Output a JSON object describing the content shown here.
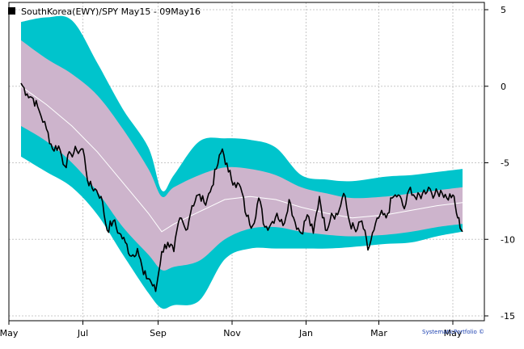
{
  "chart_data": {
    "type": "line",
    "legend": {
      "label": "SouthKorea(EWY)/SPY May15 - 09May16",
      "placement": "top-left"
    },
    "credit": "SystematicPortfolio ©",
    "x_axis": {
      "ticks": [
        "May",
        "Jul",
        "Sep",
        "Nov",
        "Jan",
        "Mar",
        "May"
      ],
      "range": [
        "2015-05-01",
        "2016-05-09"
      ]
    },
    "y_axis": {
      "side": "right",
      "ticks": [
        5,
        0,
        -5,
        -10,
        -15
      ],
      "range": [
        -15,
        5
      ]
    },
    "grid": true,
    "colors": {
      "outer_band": "#00c4cc",
      "inner_band": "#cdb4cc",
      "mean": "#ffffff",
      "price": "#000000"
    },
    "band_x": [
      "2015-05-11",
      "2015-06-01",
      "2015-06-22",
      "2015-07-13",
      "2015-08-03",
      "2015-08-24",
      "2015-09-04",
      "2015-09-14",
      "2015-10-05",
      "2015-10-26",
      "2015-11-16",
      "2015-12-07",
      "2015-12-28",
      "2016-01-18",
      "2016-02-08",
      "2016-03-07",
      "2016-03-28",
      "2016-04-18",
      "2016-05-09"
    ],
    "mean": [
      0,
      -1.2,
      -2.6,
      -4.3,
      -6.3,
      -8.3,
      -9.5,
      -9.0,
      -8.2,
      -7.4,
      -7.2,
      -7.4,
      -7.9,
      -8.3,
      -8.6,
      -8.4,
      -8.1,
      -7.8,
      -7.6
    ],
    "inner_upper": [
      3.0,
      1.8,
      0.8,
      -0.6,
      -2.8,
      -5.4,
      -7.2,
      -6.6,
      -5.8,
      -5.3,
      -5.4,
      -5.8,
      -6.6,
      -7.0,
      -7.3,
      -7.2,
      -7.0,
      -6.8,
      -6.6
    ],
    "inner_lower": [
      -2.6,
      -3.6,
      -5.0,
      -6.9,
      -9.2,
      -11.0,
      -12.0,
      -11.8,
      -11.4,
      -10.0,
      -9.3,
      -9.2,
      -9.5,
      -9.7,
      -9.8,
      -9.7,
      -9.5,
      -9.2,
      -9.0
    ],
    "outer_upper": [
      4.2,
      4.5,
      4.3,
      1.5,
      -1.5,
      -4.0,
      -6.8,
      -5.8,
      -3.6,
      -3.4,
      -3.5,
      -4.0,
      -5.8,
      -6.1,
      -6.2,
      -5.9,
      -5.8,
      -5.6,
      -5.4
    ],
    "outer_lower": [
      -4.6,
      -5.6,
      -6.6,
      -8.4,
      -11.0,
      -13.5,
      -14.5,
      -14.3,
      -14.0,
      -11.3,
      -10.6,
      -10.6,
      -10.6,
      -10.6,
      -10.5,
      -10.3,
      -10.2,
      -9.8,
      -9.5
    ],
    "price_x": [
      "2015-05-11",
      "2015-05-16",
      "2015-05-21",
      "2015-05-26",
      "2015-06-01",
      "2015-06-06",
      "2015-06-11",
      "2015-06-16",
      "2015-06-21",
      "2015-06-26",
      "2015-07-01",
      "2015-07-06",
      "2015-07-11",
      "2015-07-16",
      "2015-07-21",
      "2015-07-26",
      "2015-07-31",
      "2015-08-05",
      "2015-08-10",
      "2015-08-15",
      "2015-08-20",
      "2015-08-25",
      "2015-08-30",
      "2015-09-04",
      "2015-09-09",
      "2015-09-14",
      "2015-09-19",
      "2015-09-24",
      "2015-09-29",
      "2015-10-04",
      "2015-10-09",
      "2015-10-14",
      "2015-10-19",
      "2015-10-24",
      "2015-10-29",
      "2015-11-03",
      "2015-11-08",
      "2015-11-13",
      "2015-11-18",
      "2015-11-23",
      "2015-11-28",
      "2015-12-03",
      "2015-12-08",
      "2015-12-13",
      "2015-12-18",
      "2015-12-23",
      "2015-12-28",
      "2016-01-02",
      "2016-01-07",
      "2016-01-12",
      "2016-01-17",
      "2016-01-22",
      "2016-01-27",
      "2016-02-01",
      "2016-02-06",
      "2016-02-11",
      "2016-02-16",
      "2016-02-21",
      "2016-02-26",
      "2016-03-02",
      "2016-03-07",
      "2016-03-12",
      "2016-03-17",
      "2016-03-22",
      "2016-03-27",
      "2016-04-01",
      "2016-04-06",
      "2016-04-11",
      "2016-04-16",
      "2016-04-21",
      "2016-04-26",
      "2016-05-01",
      "2016-05-05",
      "2016-05-09"
    ],
    "price_y": [
      0.2,
      -0.5,
      -0.8,
      -1.6,
      -2.8,
      -4.1,
      -3.9,
      -5.2,
      -4.4,
      -4.2,
      -4.1,
      -6.5,
      -6.7,
      -7.2,
      -9.4,
      -8.8,
      -9.6,
      -10.2,
      -11.1,
      -10.6,
      -12.3,
      -12.6,
      -13.4,
      -10.8,
      -10.2,
      -10.8,
      -8.6,
      -9.4,
      -7.8,
      -7.1,
      -7.6,
      -6.9,
      -5.4,
      -4.1,
      -5.6,
      -6.3,
      -6.6,
      -8.5,
      -9.1,
      -7.3,
      -9.2,
      -9.0,
      -8.3,
      -9.1,
      -7.4,
      -8.9,
      -9.6,
      -8.4,
      -9.6,
      -7.2,
      -9.4,
      -8.3,
      -8.4,
      -7.0,
      -8.9,
      -9.5,
      -8.8,
      -10.7,
      -9.4,
      -8.4,
      -8.6,
      -7.3,
      -7.1,
      -8.0,
      -6.6,
      -7.4,
      -7.0,
      -6.6,
      -7.1,
      -6.8,
      -7.3,
      -7.1,
      -8.6,
      -9.5
    ]
  }
}
